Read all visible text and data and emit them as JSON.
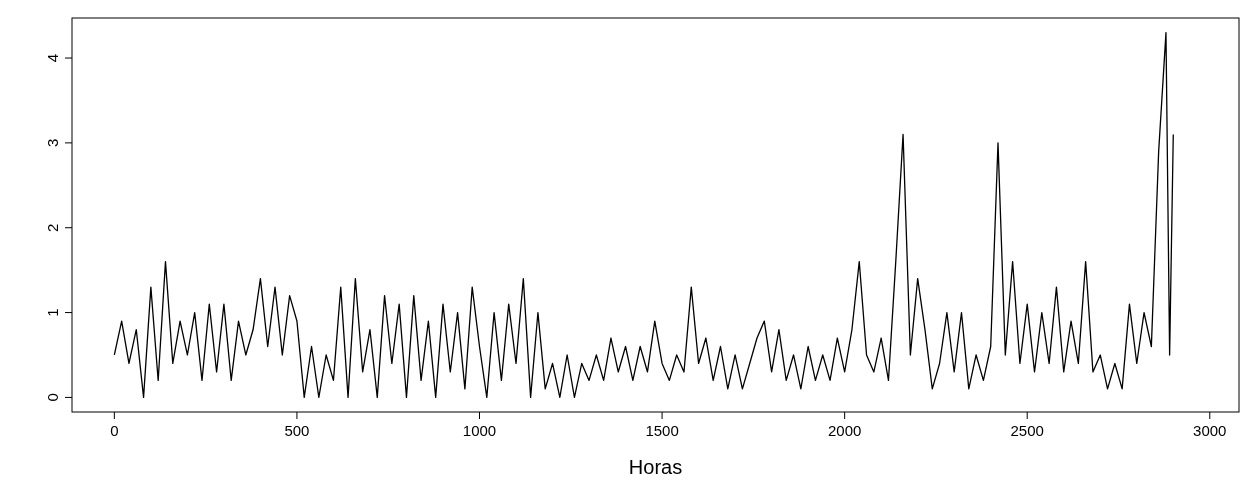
{
  "chart_data": {
    "type": "line",
    "xlabel": "Horas",
    "x": [
      0,
      20,
      40,
      60,
      80,
      100,
      120,
      140,
      160,
      180,
      200,
      220,
      240,
      260,
      280,
      300,
      320,
      340,
      360,
      380,
      400,
      420,
      440,
      460,
      480,
      500,
      520,
      540,
      560,
      580,
      600,
      620,
      640,
      660,
      680,
      700,
      720,
      740,
      760,
      780,
      800,
      820,
      840,
      860,
      880,
      900,
      920,
      940,
      960,
      980,
      1000,
      1020,
      1040,
      1060,
      1080,
      1100,
      1120,
      1140,
      1160,
      1180,
      1200,
      1220,
      1240,
      1260,
      1280,
      1300,
      1320,
      1340,
      1360,
      1380,
      1400,
      1420,
      1440,
      1460,
      1480,
      1500,
      1520,
      1540,
      1560,
      1580,
      1600,
      1620,
      1640,
      1660,
      1680,
      1700,
      1720,
      1740,
      1760,
      1780,
      1800,
      1820,
      1840,
      1860,
      1880,
      1900,
      1920,
      1940,
      1960,
      1980,
      2000,
      2020,
      2040,
      2060,
      2080,
      2100,
      2120,
      2140,
      2160,
      2180,
      2200,
      2220,
      2240,
      2260,
      2280,
      2300,
      2320,
      2340,
      2360,
      2380,
      2400,
      2420,
      2440,
      2460,
      2480,
      2500,
      2520,
      2540,
      2560,
      2580,
      2600,
      2620,
      2640,
      2660,
      2680,
      2700,
      2720,
      2740,
      2760,
      2780,
      2800,
      2820,
      2840,
      2860,
      2880,
      2890,
      2900
    ],
    "series": [
      {
        "color": "#000000",
        "values": [
          0.5,
          0.9,
          0.4,
          0.8,
          0.0,
          1.3,
          0.2,
          1.6,
          0.4,
          0.9,
          0.5,
          1.0,
          0.2,
          1.1,
          0.3,
          1.1,
          0.2,
          0.9,
          0.5,
          0.8,
          1.4,
          0.6,
          1.3,
          0.5,
          1.2,
          0.9,
          0.0,
          0.6,
          0.0,
          0.5,
          0.2,
          1.3,
          0.0,
          1.4,
          0.3,
          0.8,
          0.0,
          1.2,
          0.4,
          1.1,
          0.0,
          1.2,
          0.2,
          0.9,
          0.0,
          1.1,
          0.3,
          1.0,
          0.1,
          1.3,
          0.6,
          0.0,
          1.0,
          0.2,
          1.1,
          0.4,
          1.4,
          0.0,
          1.0,
          0.1,
          0.4,
          0.0,
          0.5,
          0.0,
          0.4,
          0.2,
          0.5,
          0.2,
          0.7,
          0.3,
          0.6,
          0.2,
          0.6,
          0.3,
          0.9,
          0.4,
          0.2,
          0.5,
          0.3,
          1.3,
          0.4,
          0.7,
          0.2,
          0.6,
          0.1,
          0.5,
          0.1,
          0.4,
          0.7,
          0.9,
          0.3,
          0.8,
          0.2,
          0.5,
          0.1,
          0.6,
          0.2,
          0.5,
          0.2,
          0.7,
          0.3,
          0.8,
          1.6,
          0.5,
          0.3,
          0.7,
          0.2,
          1.6,
          3.1,
          0.5,
          1.4,
          0.8,
          0.1,
          0.4,
          1.0,
          0.3,
          1.0,
          0.1,
          0.5,
          0.2,
          0.6,
          3.0,
          0.5,
          1.6,
          0.4,
          1.1,
          0.3,
          1.0,
          0.4,
          1.3,
          0.3,
          0.9,
          0.4,
          1.6,
          0.3,
          0.5,
          0.1,
          0.4,
          0.1,
          1.1,
          0.4,
          1.0,
          0.6,
          2.9,
          4.3,
          0.5,
          3.1
        ]
      }
    ],
    "xlim": [
      -116,
      3080
    ],
    "ylim": [
      -0.172,
      4.472
    ],
    "xticks": [
      0,
      500,
      1000,
      1500,
      2000,
      2500,
      3000
    ],
    "yticks": [
      0,
      1,
      2,
      3,
      4
    ],
    "grid": false,
    "marker": "none",
    "line_style": "solid"
  }
}
